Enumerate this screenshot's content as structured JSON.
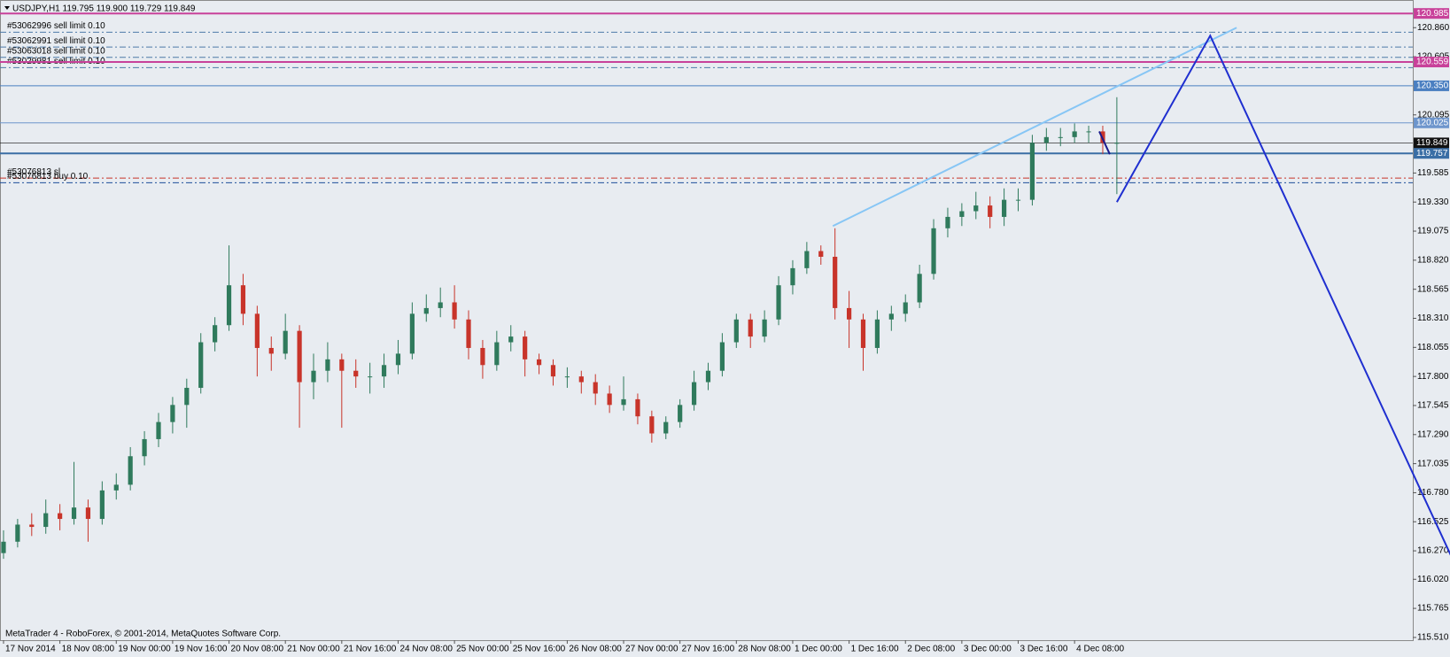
{
  "chart_data": {
    "type": "candlestick",
    "title": "USDJPY,H1  119.795 119.900 119.729 119.849",
    "footer": "MetaTrader 4 - RoboForex, © 2001-2014, MetaQuotes Software Corp.",
    "up_color": "#2f7a5c",
    "down_color": "#c8342a",
    "xlim": [
      -1,
      400
    ],
    "ylim": [
      115.486,
      121.103
    ],
    "xticks": [
      {
        "value": 0,
        "label": "17 Nov 2014"
      },
      {
        "value": 16,
        "label": "18 Nov 08:00"
      },
      {
        "value": 32,
        "label": "19 Nov 00:00"
      },
      {
        "value": 48,
        "label": "19 Nov 16:00"
      },
      {
        "value": 64,
        "label": "20 Nov 08:00"
      },
      {
        "value": 80,
        "label": "21 Nov 00:00"
      },
      {
        "value": 96,
        "label": "21 Nov 16:00"
      },
      {
        "value": 112,
        "label": "24 Nov 08:00"
      },
      {
        "value": 128,
        "label": "25 Nov 00:00"
      },
      {
        "value": 144,
        "label": "25 Nov 16:00"
      },
      {
        "value": 160,
        "label": "26 Nov 08:00"
      },
      {
        "value": 176,
        "label": "27 Nov 00:00"
      },
      {
        "value": 192,
        "label": "27 Nov 16:00"
      },
      {
        "value": 208,
        "label": "28 Nov 08:00"
      },
      {
        "value": 224,
        "label": "1 Dec 00:00"
      },
      {
        "value": 240,
        "label": "1 Dec 16:00"
      },
      {
        "value": 256,
        "label": "2 Dec 08:00"
      },
      {
        "value": 272,
        "label": "3 Dec 00:00"
      },
      {
        "value": 288,
        "label": "3 Dec 16:00"
      },
      {
        "value": 304,
        "label": "4 Dec 08:00"
      }
    ],
    "yticks": [
      {
        "value": 120.86,
        "label": "120.860"
      },
      {
        "value": 120.605,
        "label": "120.605"
      },
      {
        "value": 120.095,
        "label": "120.095"
      },
      {
        "value": 119.585,
        "label": "119.585"
      },
      {
        "value": 119.33,
        "label": "119.330"
      },
      {
        "value": 119.075,
        "label": "119.075"
      },
      {
        "value": 118.82,
        "label": "118.820"
      },
      {
        "value": 118.565,
        "label": "118.565"
      },
      {
        "value": 118.31,
        "label": "118.310"
      },
      {
        "value": 118.055,
        "label": "118.055"
      },
      {
        "value": 117.8,
        "label": "117.800"
      },
      {
        "value": 117.545,
        "label": "117.545"
      },
      {
        "value": 117.29,
        "label": "117.290"
      },
      {
        "value": 117.035,
        "label": "117.035"
      },
      {
        "value": 116.78,
        "label": "116.780"
      },
      {
        "value": 116.525,
        "label": "116.525"
      },
      {
        "value": 116.27,
        "label": "116.270"
      },
      {
        "value": 116.02,
        "label": "116.020"
      },
      {
        "value": 115.765,
        "label": "115.765"
      },
      {
        "value": 115.51,
        "label": "115.510"
      }
    ],
    "levels": [
      {
        "value": 120.985,
        "label": "120.985",
        "color": "#c8419a",
        "width": 2
      },
      {
        "value": 120.559,
        "label": "120.559",
        "color": "#c8419a",
        "width": 2
      },
      {
        "value": 120.35,
        "label": "120.350",
        "color": "#4a7fc1",
        "width": 1
      },
      {
        "value": 120.025,
        "label": "120.025",
        "color": "#6d95cc",
        "width": 1
      },
      {
        "value": 119.849,
        "label": "119.849",
        "color": "#111111",
        "width": 0.6
      },
      {
        "value": 119.757,
        "label": "119.757",
        "color": "#3a6ea5",
        "width": 2
      }
    ],
    "orders": [
      {
        "label": "#53062996 sell limit 0.10",
        "value": 120.82,
        "color": "#4d7aa8"
      },
      {
        "label": "#53062991 sell limit 0.10",
        "value": 120.69,
        "color": "#4d7aa8"
      },
      {
        "label": "#53063018 sell limit 0.10",
        "value": 120.6,
        "color": "#4d7aa8"
      },
      {
        "label": "#53029981 sell limit 0.10",
        "value": 120.51,
        "color": "#4d7aa8"
      },
      {
        "label": "#53076813 sl",
        "value": 119.54,
        "color": "#c8342a"
      },
      {
        "label": "#53076813 buy 0.10",
        "value": 119.5,
        "color": "#1f4e9a"
      }
    ],
    "trendlines": [
      {
        "color": "#87c6f5",
        "x": [
          235.4,
          350
        ],
        "y": [
          119.12,
          120.86
        ]
      },
      {
        "color": "#1f2fd0",
        "x": [
          316,
          342.5,
          410.8
        ],
        "y": [
          119.33,
          120.79,
          116.23
        ]
      },
      {
        "color": "#1a1a8c",
        "x": [
          311,
          314
        ],
        "y": [
          119.95,
          119.75
        ]
      }
    ],
    "candles": {
      "x": [
        0,
        4,
        8,
        12,
        16,
        20,
        24,
        28,
        32,
        36,
        40,
        44,
        48,
        52,
        56,
        60,
        64,
        68,
        72,
        76,
        80,
        84,
        88,
        92,
        96,
        100,
        104,
        108,
        112,
        116,
        120,
        124,
        128,
        132,
        136,
        140,
        144,
        148,
        152,
        156,
        160,
        164,
        168,
        172,
        176,
        180,
        184,
        188,
        192,
        196,
        200,
        204,
        208,
        212,
        216,
        220,
        224,
        228,
        232,
        236,
        240,
        244,
        248,
        252,
        256,
        260,
        264,
        268,
        272,
        276,
        280,
        284,
        288,
        292,
        296,
        300,
        304,
        308,
        312,
        316
      ],
      "open": [
        116.25,
        116.35,
        116.5,
        116.48,
        116.6,
        116.55,
        116.65,
        116.55,
        116.8,
        116.85,
        117.1,
        117.25,
        117.4,
        117.55,
        117.7,
        118.1,
        118.25,
        118.6,
        118.35,
        118.05,
        118,
        118.2,
        117.75,
        117.85,
        117.95,
        117.85,
        117.8,
        117.8,
        117.9,
        118,
        118.35,
        118.4,
        118.45,
        118.3,
        118.05,
        117.9,
        118.1,
        118.15,
        117.95,
        117.9,
        117.8,
        117.8,
        117.75,
        117.65,
        117.55,
        117.6,
        117.45,
        117.3,
        117.4,
        117.55,
        117.75,
        117.85,
        118.1,
        118.3,
        118.15,
        118.3,
        118.6,
        118.75,
        118.9,
        118.85,
        118.4,
        118.3,
        118.05,
        118.3,
        118.35,
        118.45,
        118.7,
        119.1,
        119.2,
        119.25,
        119.3,
        119.2,
        119.35,
        119.35,
        119.85,
        119.9,
        119.9,
        119.95,
        119.95,
        119.85
      ],
      "high": [
        116.45,
        116.55,
        116.6,
        116.72,
        116.68,
        117.05,
        116.72,
        116.88,
        116.95,
        117.18,
        117.32,
        117.48,
        117.62,
        117.78,
        118.18,
        118.32,
        118.95,
        118.7,
        118.42,
        118.15,
        118.35,
        118.25,
        118,
        118.1,
        118,
        117.95,
        117.92,
        118,
        118.12,
        118.45,
        118.52,
        118.58,
        118.6,
        118.38,
        118.12,
        118.2,
        118.25,
        118.2,
        118,
        117.95,
        117.88,
        117.85,
        117.82,
        117.72,
        117.8,
        117.65,
        117.5,
        117.45,
        117.6,
        117.85,
        117.92,
        118.18,
        118.35,
        118.35,
        118.38,
        118.68,
        118.82,
        118.98,
        118.95,
        119.1,
        118.55,
        118.35,
        118.38,
        118.42,
        118.52,
        118.78,
        119.18,
        119.28,
        119.32,
        119.42,
        119.38,
        119.45,
        119.45,
        119.92,
        119.98,
        119.98,
        120.02,
        120,
        120,
        120.25
      ],
      "low": [
        116.2,
        116.3,
        116.4,
        116.42,
        116.45,
        116.5,
        116.35,
        116.5,
        116.72,
        116.8,
        117.02,
        117.18,
        117.3,
        117.35,
        117.65,
        118.02,
        118.2,
        118.25,
        117.8,
        117.85,
        117.95,
        117.35,
        117.6,
        117.75,
        117.35,
        117.7,
        117.65,
        117.7,
        117.82,
        117.95,
        118.28,
        118.32,
        118.22,
        117.95,
        117.78,
        117.85,
        118.02,
        117.8,
        117.82,
        117.72,
        117.7,
        117.65,
        117.55,
        117.48,
        117.5,
        117.38,
        117.22,
        117.25,
        117.35,
        117.5,
        117.68,
        117.8,
        118.05,
        118.05,
        118.1,
        118.25,
        118.52,
        118.7,
        118.78,
        118.3,
        118.05,
        117.85,
        118,
        118.2,
        118.28,
        118.4,
        118.65,
        119.02,
        119.12,
        119.18,
        119.1,
        119.12,
        119.25,
        119.3,
        119.78,
        119.82,
        119.85,
        119.85,
        119.75,
        119.4
      ],
      "close": [
        116.35,
        116.5,
        116.48,
        116.6,
        116.55,
        116.65,
        116.55,
        116.8,
        116.85,
        117.1,
        117.25,
        117.4,
        117.55,
        117.7,
        118.1,
        118.25,
        118.6,
        118.35,
        118.05,
        118,
        118.2,
        117.75,
        117.85,
        117.95,
        117.85,
        117.8,
        117.8,
        117.9,
        118,
        118.35,
        118.4,
        118.45,
        118.3,
        118.05,
        117.9,
        118.1,
        118.15,
        117.95,
        117.9,
        117.8,
        117.8,
        117.75,
        117.65,
        117.55,
        117.6,
        117.45,
        117.3,
        117.4,
        117.55,
        117.75,
        117.85,
        118.1,
        118.3,
        118.15,
        118.3,
        118.6,
        118.75,
        118.9,
        118.85,
        118.4,
        118.3,
        118.05,
        118.3,
        118.35,
        118.45,
        118.7,
        119.1,
        119.2,
        119.25,
        119.3,
        119.2,
        119.35,
        119.35,
        119.85,
        119.9,
        119.9,
        119.95,
        119.95,
        119.85,
        119.85
      ]
    }
  }
}
